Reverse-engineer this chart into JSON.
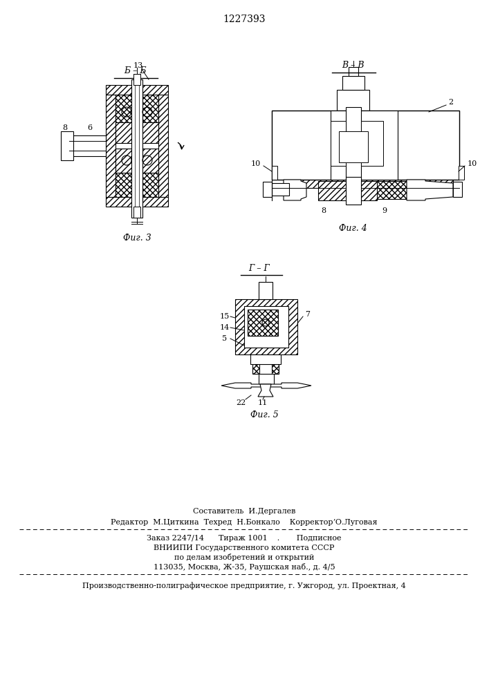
{
  "title": "1227393",
  "bg_color": "#ffffff",
  "fig3_label": "Б – Б",
  "fig3_caption": "Фиг. 3",
  "fig4_label": "В – В",
  "fig4_caption": "Фиг. 4",
  "fig5_label": "Г – Г",
  "fig5_caption": "Фиг. 5",
  "footer_line1": "Составитель  И.Дергалев",
  "footer_line2": "Редактор  М.Циткина  Техред  Н.Бонкало    КорректорʼО.Луговая",
  "footer_line3": "Заказ 2247/14      Тираж 1001    .       Подписное",
  "footer_line4": "ВНИИПИ Государственного комитета СССР",
  "footer_line5": "по делам изобретений и открытий",
  "footer_line6": "113035, Москва, Ж-35, Раушская наб., д. 4/5",
  "footer_line7": "Производственно-полиграфическое предприятие, г. Ужгород, ул. Проектная, 4"
}
